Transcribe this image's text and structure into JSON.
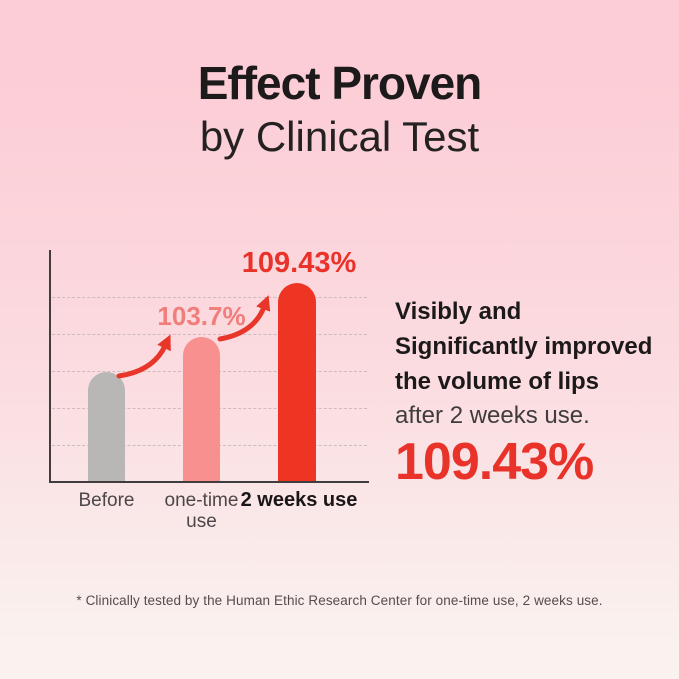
{
  "page": {
    "background_top": "#fccdd6",
    "background_mid": "#fbdce0",
    "background_bottom": "#faf2ef"
  },
  "title": {
    "line1": "Effect Proven",
    "line2": "by Clinical Test"
  },
  "chart_data": {
    "type": "bar",
    "categories": [
      "Before",
      "one-time use",
      "2 weeks use"
    ],
    "values": [
      100,
      103.7,
      109.43
    ],
    "bar_labels": [
      "",
      "103.7%",
      "109.43%"
    ],
    "bar_colors": [
      "#b8b7b5",
      "#f8908f",
      "#ee3524"
    ],
    "label_colors": [
      "",
      "#f07e7c",
      "#e9332a"
    ],
    "arrow_color": "#e8362b",
    "axis_color": "#413d3e",
    "gridline_count": 5,
    "grid": true,
    "legend": false,
    "title": "",
    "xlabel": "",
    "ylabel": "",
    "annotations": [
      "curved growth arrow from Before bar to one-time use bar",
      "curved growth arrow from one-time use bar to 2 weeks use bar"
    ]
  },
  "result_text": {
    "line1": "Visibly and",
    "line2": "Significantly improved",
    "line3": "the volume of lips",
    "line4": "after 2 weeks use.",
    "highlight_value": "109.43%",
    "highlight_color": "#e9332a"
  },
  "footnote": "* Clinically tested by the Human Ethic Research Center for one-time use, 2 weeks use."
}
